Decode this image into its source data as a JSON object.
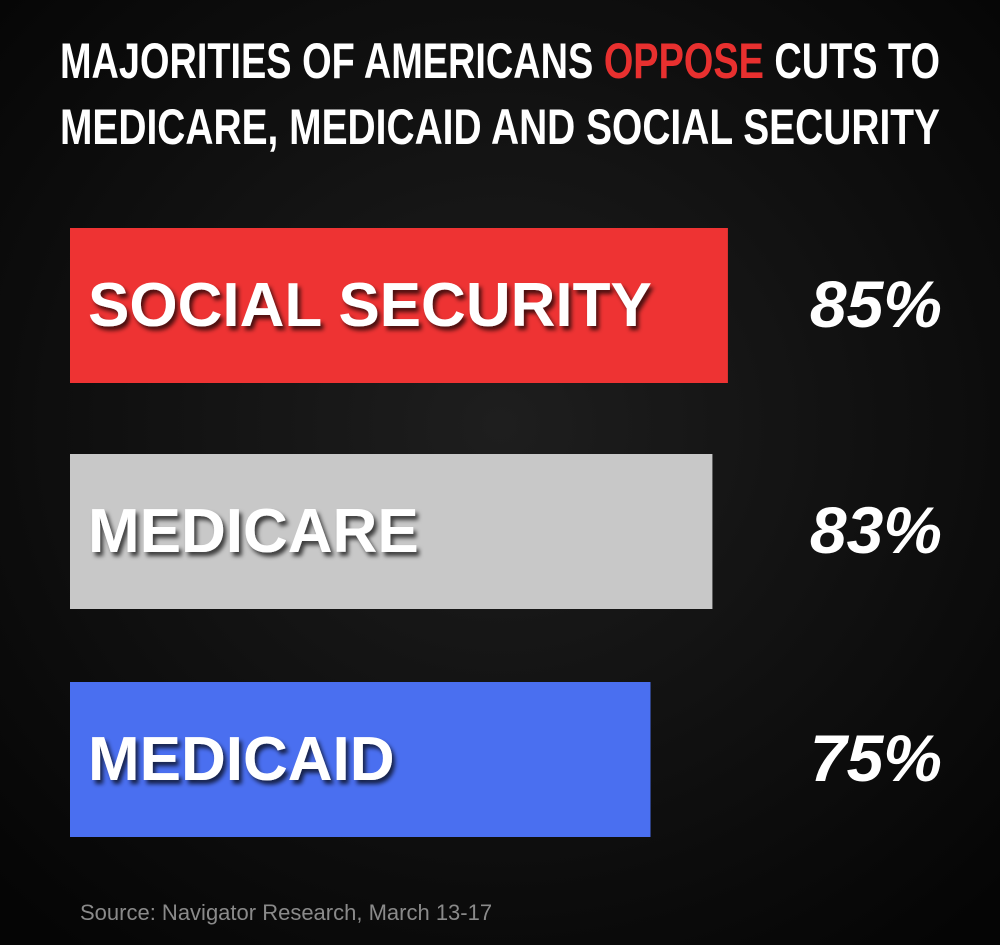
{
  "chart_data": {
    "type": "bar",
    "title": {
      "line1": [
        {
          "text": "MAJORITIES OF AMERICANS",
          "color": "#ffffff"
        },
        {
          "text": "OPPOSE",
          "color": "#e8302f"
        },
        {
          "text": "CUTS TO",
          "color": "#ffffff"
        }
      ],
      "line2": "MEDICARE, MEDICAID AND SOCIAL SECURITY"
    },
    "categories": [
      "SOCIAL SECURITY",
      "MEDICARE",
      "MEDICAID"
    ],
    "values": [
      85,
      83,
      75
    ],
    "value_labels": [
      "85%",
      "83%",
      "75%"
    ],
    "colors": [
      "#ee3333",
      "#c8c8c8",
      "#4a6ff0"
    ],
    "xlim": [
      0,
      100
    ],
    "source": "Source: Navigator Research, March 13-17"
  }
}
